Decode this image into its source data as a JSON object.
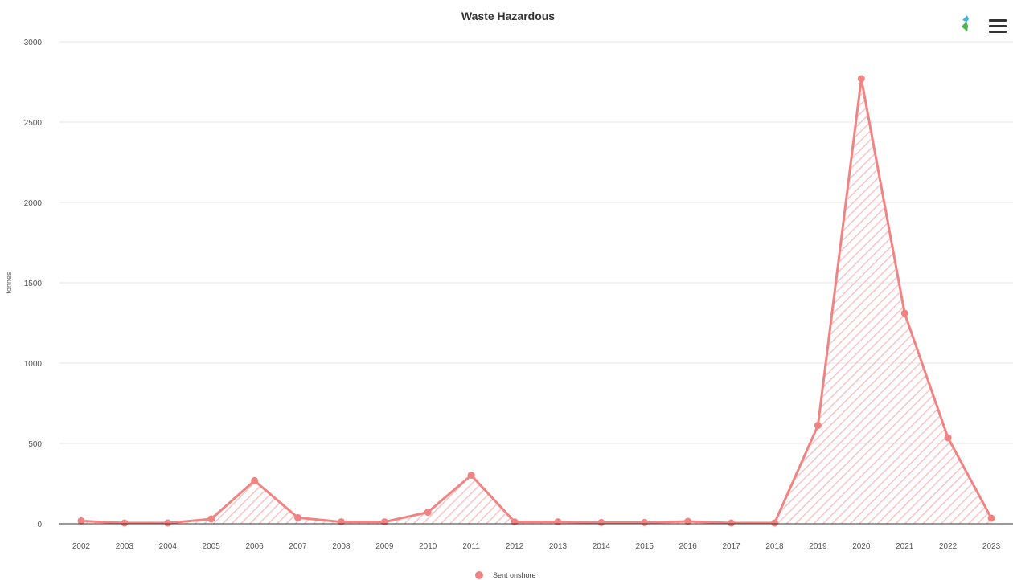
{
  "chart_data": {
    "type": "area",
    "title": "Waste Hazardous",
    "ylabel": "tonnes",
    "xlabel": "",
    "categories": [
      "2002",
      "2003",
      "2004",
      "2005",
      "2006",
      "2007",
      "2008",
      "2009",
      "2010",
      "2011",
      "2012",
      "2013",
      "2014",
      "2015",
      "2016",
      "2017",
      "2018",
      "2019",
      "2020",
      "2021",
      "2022",
      "2023"
    ],
    "series": [
      {
        "name": "Sent onshore",
        "values": [
          18,
          5,
          5,
          30,
          268,
          38,
          12,
          12,
          72,
          302,
          12,
          12,
          8,
          8,
          15,
          5,
          5,
          612,
          2770,
          1310,
          535,
          35
        ]
      }
    ],
    "ylim": [
      0,
      3000
    ],
    "yticks": [
      0,
      500,
      1000,
      1500,
      2000,
      2500,
      3000
    ],
    "grid": true,
    "legend": "bottom-center",
    "colors": {
      "series": "#f28383",
      "hatch": "#f9c4c4",
      "grid": "#e6e6e6",
      "axis": "#333333"
    }
  },
  "icons": {
    "menu": "hamburger-menu-icon",
    "logo": "brand-logo-icon"
  }
}
